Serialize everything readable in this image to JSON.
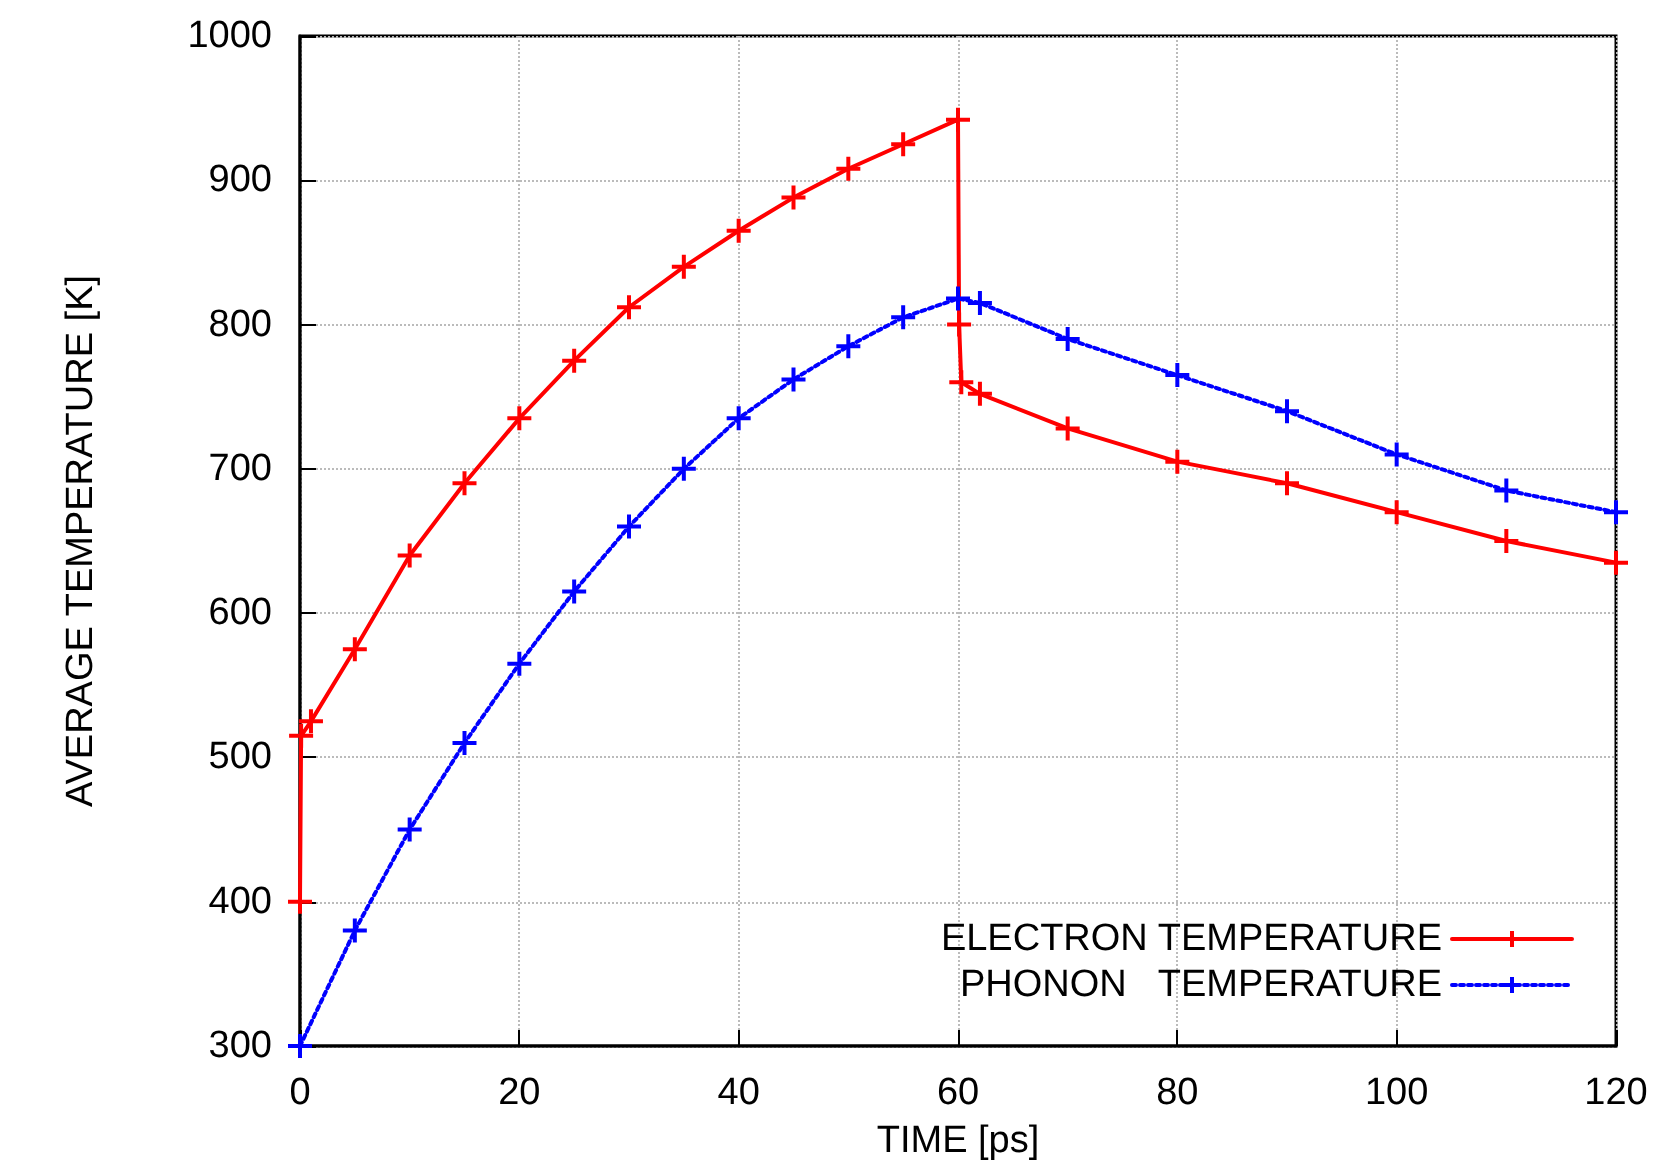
{
  "chart_data": {
    "type": "line",
    "xlabel": "TIME [ps]",
    "ylabel": "AVERAGE TEMPERATURE [K]",
    "xlim": [
      0,
      120
    ],
    "xticks": [
      0,
      20,
      40,
      60,
      80,
      100,
      120
    ],
    "ylim": [
      300,
      1000
    ],
    "yticks": [
      300,
      400,
      500,
      600,
      700,
      800,
      900,
      1000
    ],
    "grid": true,
    "legend": "bottom right",
    "series": [
      {
        "name": "ELECTRON TEMPERATURE",
        "color": "#ff0000",
        "marker": "cross",
        "line_style": "solid",
        "x": [
          0,
          0.1,
          1,
          5,
          10,
          15,
          20,
          25,
          30,
          35,
          40,
          45,
          50,
          55,
          60,
          60.1,
          60.3,
          62,
          70,
          80,
          90,
          100,
          110,
          120
        ],
        "values": [
          400,
          515,
          525,
          575,
          640,
          690,
          735,
          775,
          812,
          840,
          865,
          888,
          908,
          925,
          942,
          800,
          760,
          752,
          728,
          705,
          690,
          670,
          650,
          635
        ]
      },
      {
        "name": "PHONON   TEMPERATURE",
        "color": "#0000ff",
        "marker": "cross",
        "line_style": "dotted",
        "x": [
          0,
          5,
          10,
          15,
          20,
          25,
          30,
          35,
          40,
          45,
          50,
          55,
          60,
          62,
          70,
          80,
          90,
          100,
          110,
          120
        ],
        "values": [
          300,
          380,
          450,
          510,
          565,
          615,
          660,
          700,
          735,
          762,
          785,
          805,
          818,
          815,
          790,
          765,
          740,
          710,
          685,
          670
        ]
      }
    ]
  }
}
